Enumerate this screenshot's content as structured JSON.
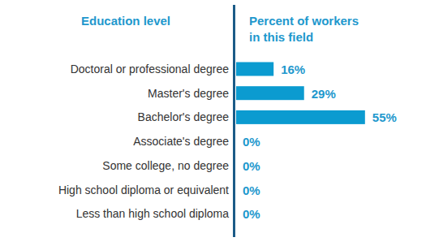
{
  "chart_data": {
    "type": "bar",
    "orientation": "horizontal",
    "y_label": "Education level",
    "x_label": "Percent of workers in this field",
    "categories": [
      "Doctoral or professional degree",
      "Master's degree",
      "Bachelor's degree",
      "Associate's degree",
      "Some college, no degree",
      "High school diploma or equivalent",
      "Less than high school diploma"
    ],
    "values": [
      16,
      29,
      55,
      0,
      0,
      0,
      0
    ],
    "value_labels": [
      "16%",
      "29%",
      "55%",
      "0%",
      "0%",
      "0%",
      "0%"
    ],
    "data_labels": true,
    "tick_labels": "y",
    "color": "#0b9bd0",
    "xlim": [
      0,
      80
    ]
  }
}
